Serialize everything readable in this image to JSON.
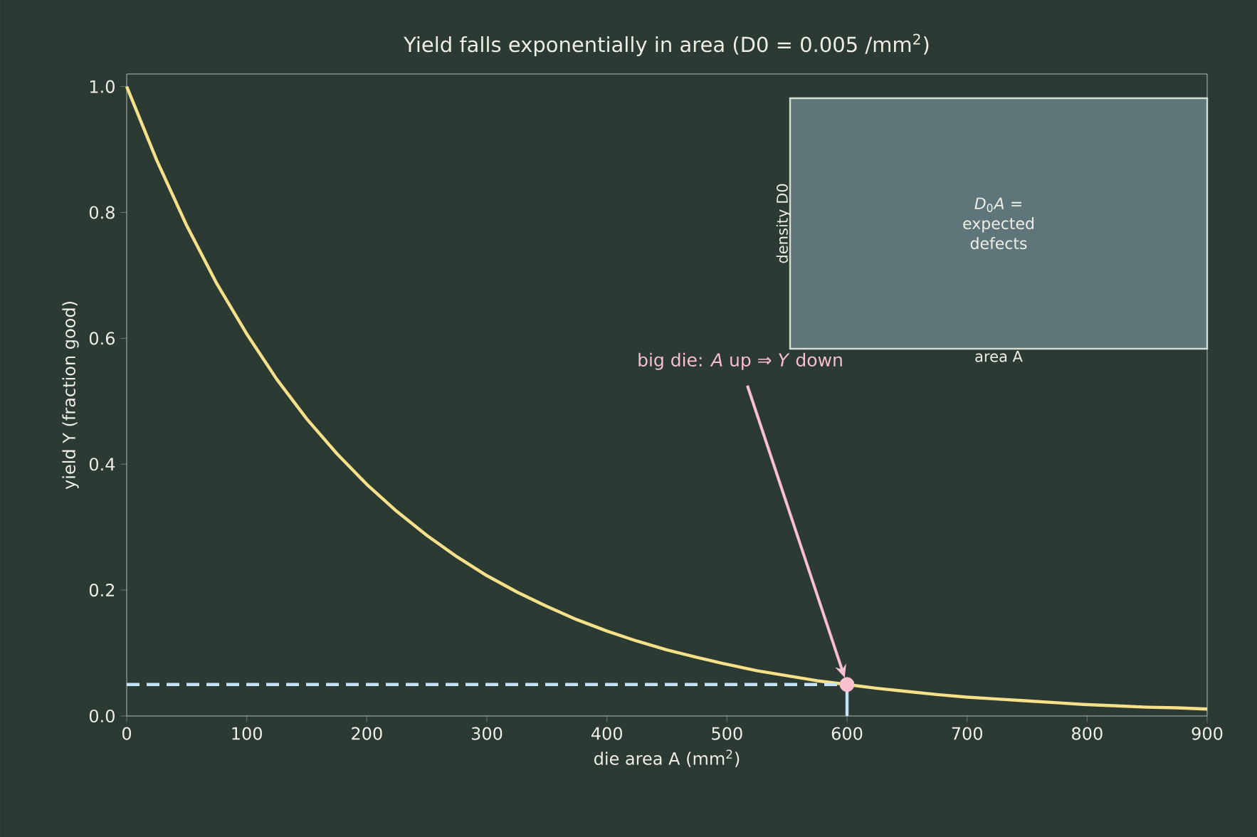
{
  "chart_data": [
    {
      "type": "line",
      "title": "Yield falls exponentially in area  (D0 = 0.005 /mm$^{2}$)",
      "xlabel": "die area  A  (mm$^{2}$)",
      "ylabel": "yield  Y  (fraction good)",
      "xlim": [
        0,
        900
      ],
      "ylim": [
        0,
        1.02
      ],
      "xticks": [
        0,
        100,
        200,
        300,
        400,
        500,
        600,
        700,
        800,
        900
      ],
      "yticks": [
        {
          "value": 0,
          "label": "0.0"
        },
        0.2,
        0.4,
        0.6,
        0.8,
        {
          "value": 1,
          "label": "1.0"
        }
      ],
      "series": [
        {
          "type": "line",
          "color": "#f7e08a",
          "x": [
            0,
            25,
            50,
            75,
            100,
            125,
            150,
            175,
            200,
            225,
            250,
            275,
            300,
            325,
            350,
            375,
            400,
            425,
            450,
            475,
            500,
            525,
            550,
            575,
            600,
            625,
            650,
            675,
            700,
            725,
            750,
            775,
            800,
            825,
            850,
            875,
            900
          ],
          "values": [
            1.0,
            0.883,
            0.779,
            0.687,
            0.607,
            0.535,
            0.472,
            0.417,
            0.368,
            0.325,
            0.287,
            0.253,
            0.223,
            0.197,
            0.174,
            0.153,
            0.135,
            0.119,
            0.105,
            0.093,
            0.082,
            0.072,
            0.064,
            0.056,
            0.05,
            0.044,
            0.039,
            0.034,
            0.03,
            0.027,
            0.024,
            0.021,
            0.018,
            0.016,
            0.014,
            0.013,
            0.011
          ]
        },
        {
          "type": "line",
          "color": "#c6e2f7",
          "line_style": "dashed",
          "x": [
            0,
            600
          ],
          "values": [
            0.05,
            0.05
          ]
        },
        {
          "type": "line",
          "color": "#c6e2f7",
          "x": [
            600,
            600
          ],
          "values": [
            0,
            0.05
          ]
        },
        {
          "type": "scatter",
          "color": "#f9c0cf",
          "marker": "circle",
          "x": [
            600
          ],
          "values": [
            0.05
          ]
        }
      ],
      "annotations": [
        "big die: *A* up ⇒ *Y* down"
      ]
    },
    {
      "type": "other",
      "xlabel": "area A",
      "ylabel": "density D0",
      "annotations": [
        "*D*$_{0}$*A* = expected defects"
      ]
    }
  ]
}
